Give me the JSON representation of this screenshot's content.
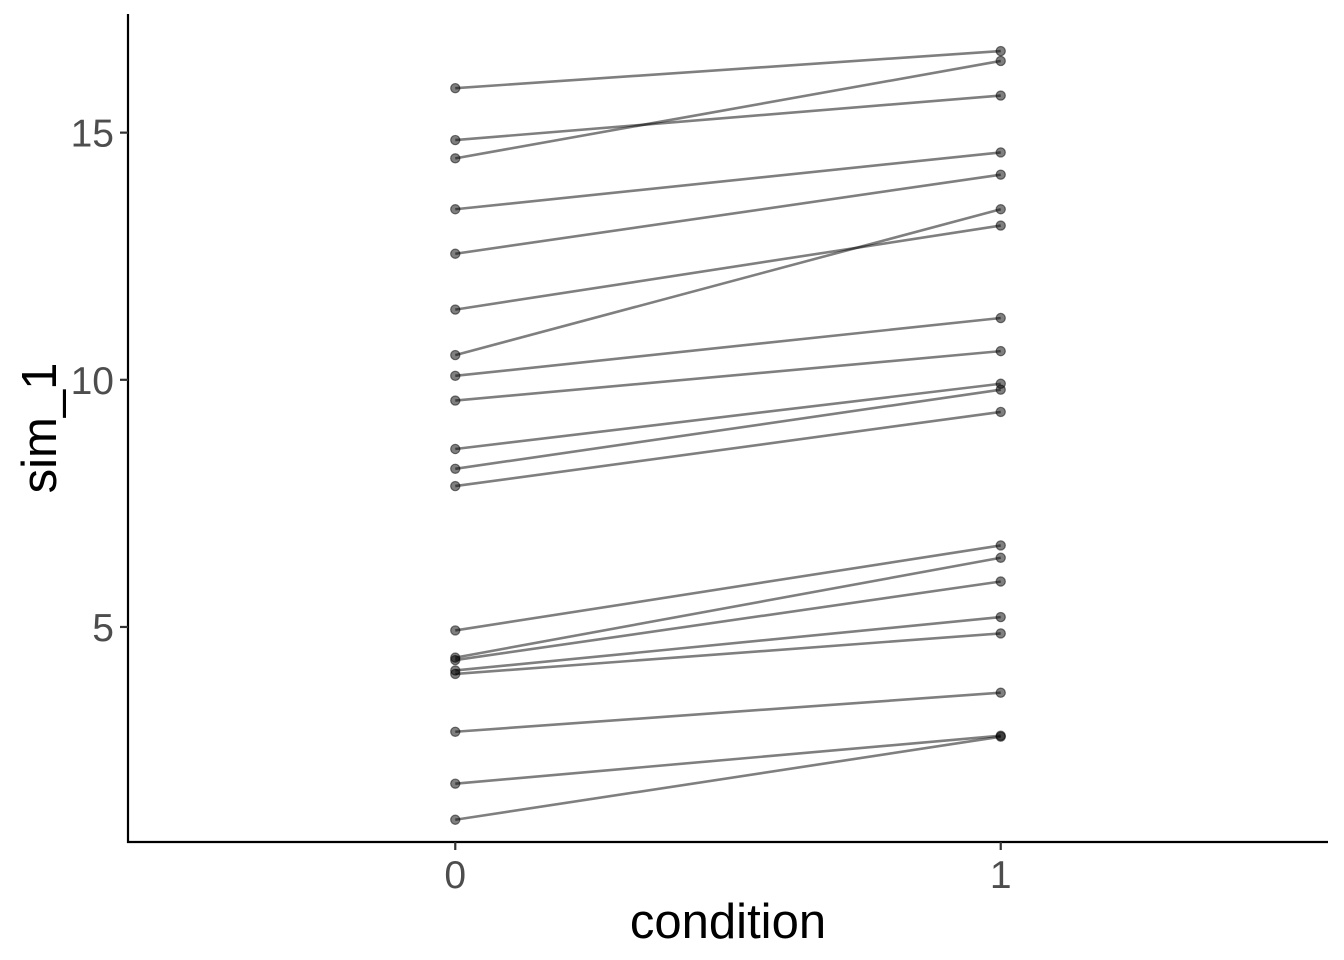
{
  "chart_data": {
    "type": "line",
    "title": "",
    "xlabel": "condition",
    "ylabel": "sim_1",
    "x": [
      0,
      1
    ],
    "x_ticks": [
      "0",
      "1"
    ],
    "xlim": [
      -0.6,
      1.6
    ],
    "y_ticks": [
      "5",
      "10",
      "15"
    ],
    "ylim": [
      0.65,
      17.4
    ],
    "grid": false,
    "legend": "none",
    "line_color": "#000000",
    "series": [
      {
        "values": [
          15.9,
          16.65
        ]
      },
      {
        "values": [
          14.85,
          15.75
        ]
      },
      {
        "values": [
          14.48,
          16.45
        ]
      },
      {
        "values": [
          13.45,
          14.6
        ]
      },
      {
        "values": [
          12.55,
          14.15
        ]
      },
      {
        "values": [
          11.42,
          13.12
        ]
      },
      {
        "values": [
          10.5,
          13.45
        ]
      },
      {
        "values": [
          10.08,
          11.25
        ]
      },
      {
        "values": [
          9.58,
          10.58
        ]
      },
      {
        "values": [
          8.6,
          9.92
        ]
      },
      {
        "values": [
          8.2,
          9.8
        ]
      },
      {
        "values": [
          7.85,
          9.35
        ]
      },
      {
        "values": [
          4.93,
          6.65
        ]
      },
      {
        "values": [
          4.38,
          6.4
        ]
      },
      {
        "values": [
          4.33,
          5.92
        ]
      },
      {
        "values": [
          4.12,
          5.2
        ]
      },
      {
        "values": [
          4.05,
          4.87
        ]
      },
      {
        "values": [
          2.88,
          3.67
        ]
      },
      {
        "values": [
          1.83,
          2.8
        ]
      },
      {
        "values": [
          1.1,
          2.78
        ]
      }
    ]
  }
}
